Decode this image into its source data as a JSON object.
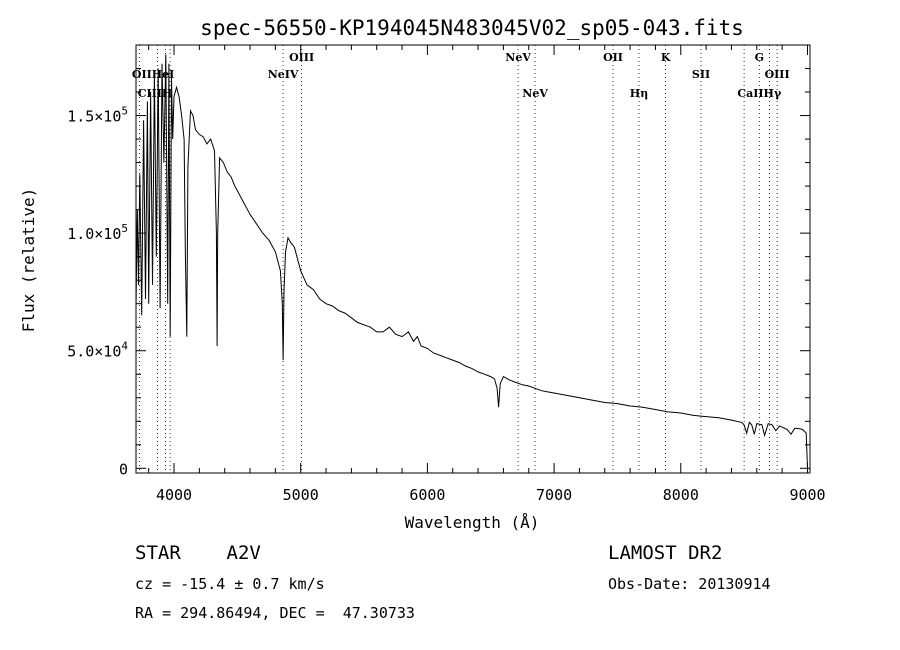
{
  "chart_data": {
    "type": "line",
    "title": "spec-56550-KP194045N483045V02_sp05-043.fits",
    "xlabel": "Wavelength (Å)",
    "ylabel": "Flux (relative)",
    "xlim": [
      3700,
      9020
    ],
    "ylim": [
      -2000,
      180000
    ],
    "x_ticks": [
      {
        "value": 4000,
        "label": "4000"
      },
      {
        "value": 5000,
        "label": "5000"
      },
      {
        "value": 6000,
        "label": "6000"
      },
      {
        "value": 7000,
        "label": "7000"
      },
      {
        "value": 8000,
        "label": "8000"
      },
      {
        "value": 9000,
        "label": "9000"
      }
    ],
    "y_ticks": [
      {
        "value": 0,
        "mant": "0",
        "exp": ""
      },
      {
        "value": 50000,
        "mant": "5.0×10",
        "exp": "4"
      },
      {
        "value": 100000,
        "mant": "1.0×10",
        "exp": "5"
      },
      {
        "value": 150000,
        "mant": "1.5×10",
        "exp": "5"
      }
    ],
    "series": [
      {
        "x": [
          3700,
          3710,
          3720,
          3730,
          3745,
          3760,
          3775,
          3790,
          3800,
          3815,
          3830,
          3845,
          3860,
          3875,
          3890,
          3905,
          3920,
          3935,
          3950,
          3960,
          3970,
          3980,
          3990,
          4000,
          4020,
          4040,
          4060,
          4080,
          4090,
          4101,
          4110,
          4130,
          4150,
          4170,
          4200,
          4230,
          4260,
          4290,
          4320,
          4335,
          4340,
          4345,
          4360,
          4390,
          4420,
          4450,
          4480,
          4500,
          4550,
          4600,
          4650,
          4700,
          4750,
          4800,
          4820,
          4840,
          4855,
          4861,
          4868,
          4880,
          4900,
          4920,
          4950,
          5000,
          5050,
          5100,
          5150,
          5200,
          5250,
          5300,
          5350,
          5400,
          5450,
          5500,
          5550,
          5600,
          5650,
          5700,
          5750,
          5800,
          5850,
          5890,
          5920,
          5950,
          6000,
          6050,
          6100,
          6150,
          6200,
          6250,
          6300,
          6350,
          6400,
          6450,
          6500,
          6530,
          6550,
          6562,
          6575,
          6600,
          6650,
          6700,
          6750,
          6800,
          6850,
          6900,
          6950,
          7000,
          7100,
          7200,
          7300,
          7400,
          7500,
          7600,
          7700,
          7800,
          7900,
          8000,
          8100,
          8200,
          8300,
          8400,
          8480,
          8500,
          8520,
          8542,
          8560,
          8580,
          8600,
          8640,
          8662,
          8690,
          8720,
          8750,
          8780,
          8800,
          8840,
          8870,
          8900,
          8940,
          8960,
          8990,
          9000
        ],
        "y": [
          68000,
          110000,
          78000,
          125000,
          65000,
          148000,
          72000,
          156000,
          70000,
          160000,
          78000,
          168000,
          90000,
          170000,
          68000,
          172000,
          130000,
          176000,
          70000,
          172000,
          56000,
          166000,
          140000,
          158000,
          162000,
          158000,
          150000,
          140000,
          90000,
          56000,
          128000,
          152000,
          150000,
          144000,
          142000,
          141000,
          138000,
          140000,
          135000,
          100000,
          52000,
          100000,
          132000,
          130000,
          126000,
          124000,
          120000,
          118000,
          113000,
          108000,
          104000,
          100000,
          97000,
          92000,
          88000,
          84000,
          70000,
          46000,
          75000,
          92000,
          98000,
          96000,
          94000,
          84000,
          78000,
          76000,
          72000,
          70000,
          69000,
          67000,
          66000,
          64000,
          62000,
          61000,
          60000,
          58000,
          58000,
          60000,
          57000,
          56000,
          58000,
          54000,
          56000,
          52000,
          51000,
          49000,
          48000,
          47000,
          46000,
          45000,
          43500,
          42500,
          41000,
          40000,
          39000,
          38000,
          34000,
          26000,
          36000,
          39000,
          37500,
          36500,
          35500,
          35000,
          34000,
          33000,
          32500,
          32000,
          31000,
          30000,
          29000,
          28000,
          27500,
          26500,
          26000,
          25000,
          24000,
          23500,
          22500,
          22000,
          21500,
          20500,
          19500,
          18500,
          15000,
          19500,
          18500,
          14500,
          19000,
          18500,
          14000,
          19000,
          18500,
          16000,
          18000,
          17500,
          16500,
          14500,
          17000,
          16800,
          16500,
          15000,
          0
        ]
      }
    ],
    "lines_dotted": [
      3727,
      3869,
      3934,
      3969,
      4861,
      5007,
      6716,
      6850,
      7465,
      7670,
      7880,
      8160,
      8500,
      8620,
      8700,
      8760
    ],
    "line_labels": [
      {
        "text": "OIII",
        "x": 5007,
        "row": 1,
        "dx": 0
      },
      {
        "text": "NeIV",
        "x": 4861,
        "row": 2,
        "dx": 0
      },
      {
        "text": "NeV",
        "x": 6716,
        "row": 1,
        "dx": 0
      },
      {
        "text": "NeV",
        "x": 6850,
        "row": 3,
        "dx": 0
      },
      {
        "text": "OII",
        "x": 7465,
        "row": 1,
        "dx": 0
      },
      {
        "text": "K",
        "x": 7880,
        "row": 1,
        "dx": 0
      },
      {
        "text": "Hη",
        "x": 7670,
        "row": 3,
        "dx": 0
      },
      {
        "text": "SII",
        "x": 8160,
        "row": 2,
        "dx": 0
      },
      {
        "text": "G",
        "x": 8620,
        "row": 1,
        "dx": 0
      },
      {
        "text": "OIII",
        "x": 8760,
        "row": 2,
        "dx": 0
      },
      {
        "text": "CaIIHγ",
        "x": 8620,
        "row": 3,
        "dx": 0
      },
      {
        "text": "OIIHeI",
        "x": 3835,
        "row": 2,
        "dx": 0
      },
      {
        "text": "CIIIH",
        "x": 3850,
        "row": 3,
        "dx": 0
      }
    ]
  },
  "info": {
    "object_type": "STAR    A2V",
    "survey": "LAMOST DR2",
    "cz": "cz = -15.4 ± 0.7 km/s",
    "obs_date": "Obs-Date: 20130914",
    "coords": "RA = 294.86494, DEC =  47.30733"
  }
}
